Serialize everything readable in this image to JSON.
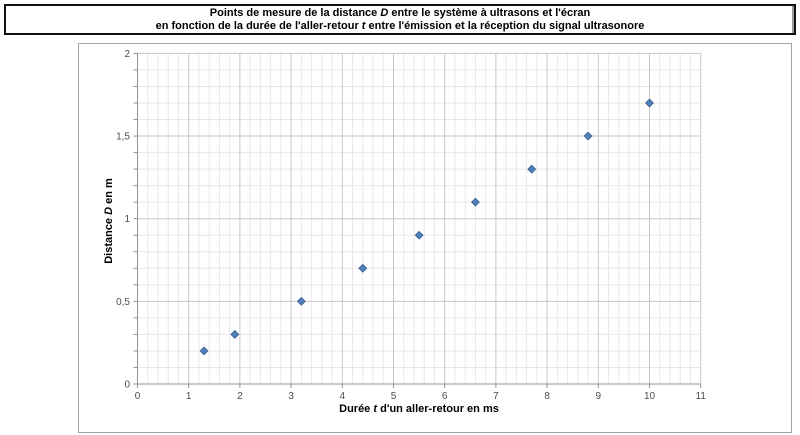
{
  "title_box": {
    "lines": [
      {
        "segments": [
          {
            "t": "Points de mesure de la distance "
          },
          {
            "t": "D",
            "i": true
          },
          {
            "t": " entre le système à ultrasons et l'écran"
          }
        ]
      },
      {
        "segments": [
          {
            "t": "en fonction de la durée de l'aller-retour "
          },
          {
            "t": "t",
            "i": true
          },
          {
            "t": " entre l'émission et la réception du signal ultrasonore"
          }
        ]
      }
    ]
  },
  "chart_data": {
    "type": "scatter",
    "title": "Points de mesure de la distance D entre le système à ultrasons et l'écran en fonction de la durée de l'aller-retour t entre l'émission et la réception du signal ultrasonore",
    "xlabel": "Durée t d'un aller-retour en ms",
    "ylabel": "Distance D en m",
    "xlabel_segments": [
      {
        "t": "Durée "
      },
      {
        "t": "t",
        "i": true
      },
      {
        "t": " d'un aller-retour en ms"
      }
    ],
    "ylabel_segments": [
      {
        "t": "Distance "
      },
      {
        "t": "D",
        "i": true
      },
      {
        "t": " en m"
      }
    ],
    "x": [
      1.3,
      1.9,
      3.2,
      4.4,
      5.5,
      6.6,
      7.7,
      8.8,
      10
    ],
    "y": [
      0.2,
      0.3,
      0.5,
      0.7,
      0.9,
      1.1,
      1.3,
      1.5,
      1.7
    ],
    "xlim": [
      0,
      11
    ],
    "ylim": [
      0,
      2
    ],
    "x_major_unit": 1,
    "x_minor_unit": 0.2,
    "y_major_unit": 0.5,
    "y_minor_unit": 0.1,
    "x_tick_labels": [
      "0",
      "1",
      "2",
      "3",
      "4",
      "5",
      "6",
      "7",
      "8",
      "9",
      "10",
      "11"
    ],
    "y_tick_labels": [
      "0",
      "0,5",
      "1",
      "1,5",
      "2"
    ],
    "grid": true,
    "legend": "none",
    "marker": {
      "shape": "diamond",
      "size": 7.5,
      "color": "#4F81BD",
      "border_color": "#3A6193"
    },
    "colors": {
      "axis": "#949494",
      "major_grid": "#C6C6C6",
      "minor_grid": "#E8E8E8",
      "tick_label": "#4D4D4D",
      "axis_title": "#000000",
      "background": "#FFFFFF"
    }
  }
}
